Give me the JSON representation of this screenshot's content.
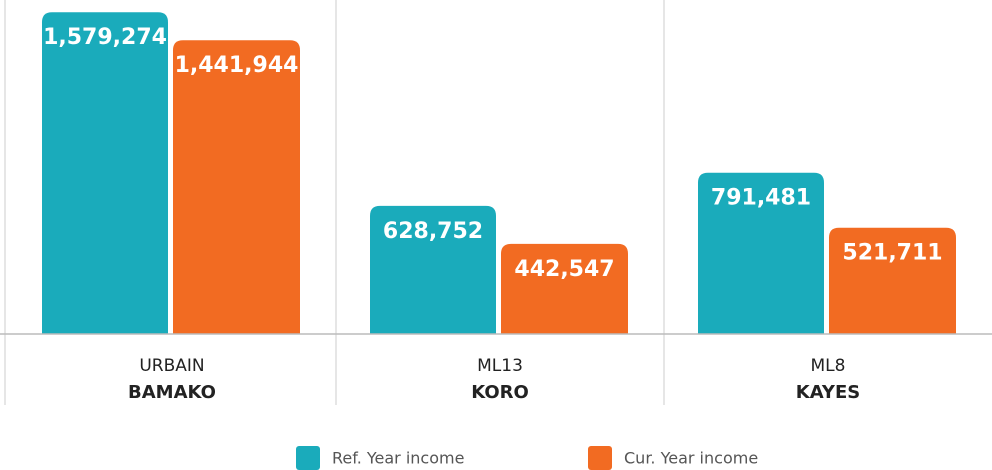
{
  "chart_data": {
    "type": "bar",
    "category_codes": [
      "URBAIN",
      "ML13",
      "ML8"
    ],
    "categories": [
      "BAMAKO",
      "KORO",
      "KAYES"
    ],
    "series": [
      {
        "name": "Ref. Year income",
        "color": "#1aabbb",
        "values": [
          1579274,
          628752,
          791481
        ],
        "value_labels": [
          "1,579,274",
          "628,752",
          "791,481"
        ]
      },
      {
        "name": "Cur. Year income",
        "color": "#f26b22",
        "values": [
          1441944,
          442547,
          521711
        ],
        "value_labels": [
          "1,441,944",
          "442,547",
          "521,711"
        ]
      }
    ],
    "ylim": [
      0,
      1600000
    ]
  }
}
